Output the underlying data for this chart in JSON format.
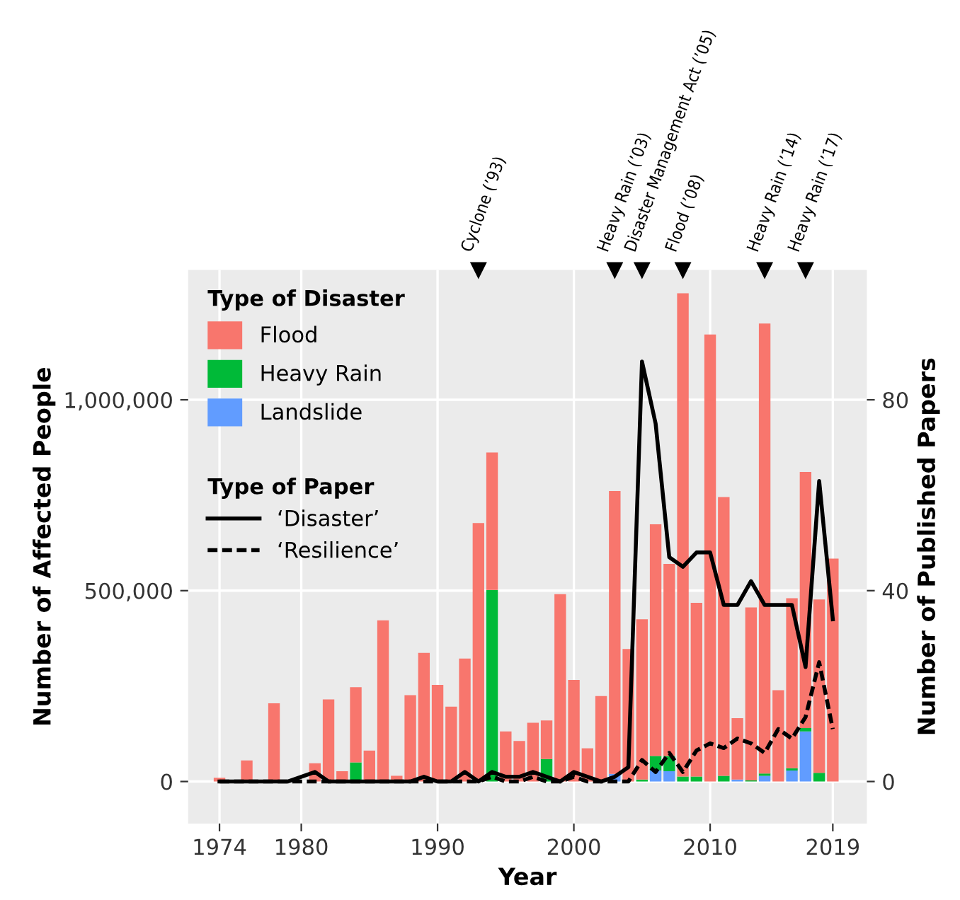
{
  "chart_data": {
    "type": "bar",
    "stacked": true,
    "xlabel": "Year",
    "ylabel": "Number of Affected People",
    "y2label": "Number of Published Papers",
    "legend_title": [
      "Type of Disaster",
      "Type of Paper"
    ],
    "x": [
      1974,
      1975,
      1976,
      1977,
      1978,
      1979,
      1980,
      1981,
      1982,
      1983,
      1984,
      1985,
      1986,
      1987,
      1988,
      1989,
      1990,
      1991,
      1992,
      1993,
      1994,
      1995,
      1996,
      1997,
      1998,
      1999,
      2000,
      2001,
      2002,
      2003,
      2004,
      2005,
      2006,
      2007,
      2008,
      2009,
      2010,
      2011,
      2012,
      2013,
      2014,
      2015,
      2016,
      2017,
      2018,
      2019
    ],
    "series": [
      {
        "name": "Landslide",
        "color": "#619cff",
        "values": [
          0,
          0,
          0,
          0,
          0,
          0,
          0,
          0,
          0,
          0,
          0,
          0,
          0,
          0,
          0,
          0,
          0,
          0,
          0,
          0,
          0,
          0,
          0,
          0,
          0,
          0,
          0,
          0,
          0,
          20000,
          0,
          0,
          29000,
          27000,
          0,
          0,
          0,
          0,
          5000,
          0,
          15000,
          0,
          29000,
          131000,
          0,
          0
        ]
      },
      {
        "name": "Heavy Rain",
        "color": "#00ba38",
        "values": [
          0,
          0,
          0,
          0,
          0,
          0,
          0,
          0,
          0,
          0,
          50000,
          0,
          0,
          0,
          0,
          0,
          0,
          0,
          0,
          0,
          502000,
          0,
          0,
          0,
          59000,
          0,
          0,
          0,
          0,
          0,
          0,
          5000,
          38000,
          40000,
          13000,
          13000,
          0,
          15000,
          0,
          3000,
          6000,
          0,
          6000,
          9000,
          23000,
          0
        ]
      },
      {
        "name": "Flood",
        "color": "#f8766d",
        "values": [
          10000,
          0,
          55000,
          null,
          205000,
          null,
          0,
          48000,
          215000,
          27000,
          197000,
          81000,
          422000,
          15000,
          226000,
          337000,
          253000,
          196000,
          322000,
          677000,
          360000,
          131000,
          106000,
          154000,
          101000,
          491000,
          266000,
          87000,
          224000,
          741000,
          347000,
          420000,
          607000,
          503000,
          1266000,
          455000,
          1171000,
          730000,
          161000,
          453000,
          1179000,
          239000,
          445000,
          671000,
          454000,
          584000
        ]
      },
      {
        "name": "‘Disaster’",
        "type": "line",
        "axis": "y2",
        "color": "#000000",
        "line_style": "solid",
        "marker": "none",
        "x": [
          1974,
          1975,
          1976,
          1977,
          1978,
          1979,
          1980,
          1981,
          1982,
          1983,
          1984,
          1985,
          1986,
          1987,
          1988,
          1989,
          1990,
          1991,
          1992,
          1993,
          1994,
          1995,
          1996,
          1997,
          1998,
          1999,
          2000,
          2001,
          2002,
          2003,
          2004,
          2005,
          2006,
          2007,
          2008,
          2009,
          2010,
          2011,
          2012,
          2013,
          2014,
          2015,
          2016,
          2017,
          2018,
          2019
        ],
        "values": [
          0,
          0,
          0,
          0,
          0,
          0,
          1,
          2,
          0,
          0,
          0,
          0,
          0,
          0,
          0,
          1,
          0,
          0,
          2,
          0,
          2,
          1,
          1,
          2,
          1,
          0,
          2,
          1,
          0,
          1,
          3,
          88,
          75,
          47,
          45,
          48,
          48,
          37,
          37,
          42,
          37,
          37,
          37,
          24,
          63,
          34
        ]
      },
      {
        "name": "‘Resilience’",
        "type": "line",
        "axis": "y2",
        "color": "#000000",
        "line_style": "dashed",
        "marker": "none",
        "x": [
          1974,
          1975,
          1976,
          1977,
          1978,
          1979,
          1980,
          1981,
          1982,
          1983,
          1984,
          1985,
          1986,
          1987,
          1988,
          1989,
          1990,
          1991,
          1992,
          1993,
          1994,
          1995,
          1996,
          1997,
          1998,
          1999,
          2000,
          2001,
          2002,
          2003,
          2004,
          2005,
          2006,
          2007,
          2008,
          2009,
          2010,
          2011,
          2012,
          2013,
          2014,
          2015,
          2016,
          2017,
          2018,
          2019
        ],
        "values": [
          0,
          0,
          0,
          0,
          0,
          0,
          0,
          0,
          0,
          0,
          0,
          0,
          0,
          0,
          0,
          0,
          0,
          0,
          0,
          0,
          1,
          0,
          0,
          1,
          0,
          0,
          1,
          0,
          0,
          0,
          0,
          4.5,
          2,
          6,
          2,
          6.5,
          8,
          7,
          9,
          8,
          6,
          11,
          9,
          13.5,
          25,
          11
        ]
      }
    ],
    "xlim": [
      1971.7,
      2021.5
    ],
    "xticks": [
      1974,
      1980,
      1990,
      2000,
      2010,
      2019
    ],
    "ylim": [
      -110000,
      1340000
    ],
    "yticks": [
      {
        "value": 0,
        "label": "0"
      },
      {
        "value": 500000,
        "label": "500,000"
      },
      {
        "value": 1000000,
        "label": "1,000,000"
      }
    ],
    "y2lim": [
      -8.8,
      107.2
    ],
    "y2ticks": [
      0,
      40,
      80
    ],
    "annotations": [
      {
        "text": "Cyclone (’93)",
        "x": 1993,
        "y": 1340000
      },
      {
        "text": "Heavy Rain (’03)",
        "x": 2003,
        "y": 1340000
      },
      {
        "text": "Disaster Management Act (’05)",
        "x": 2005,
        "y": 1340000
      },
      {
        "text": "Flood (’08)",
        "x": 2008,
        "y": 1340000
      },
      {
        "text": "Heavy Rain (’14)",
        "x": 2014,
        "y": 1340000
      },
      {
        "text": "Heavy Rain (’17)",
        "x": 2017,
        "y": 1340000
      }
    ],
    "grid": true,
    "legend": "top left"
  }
}
